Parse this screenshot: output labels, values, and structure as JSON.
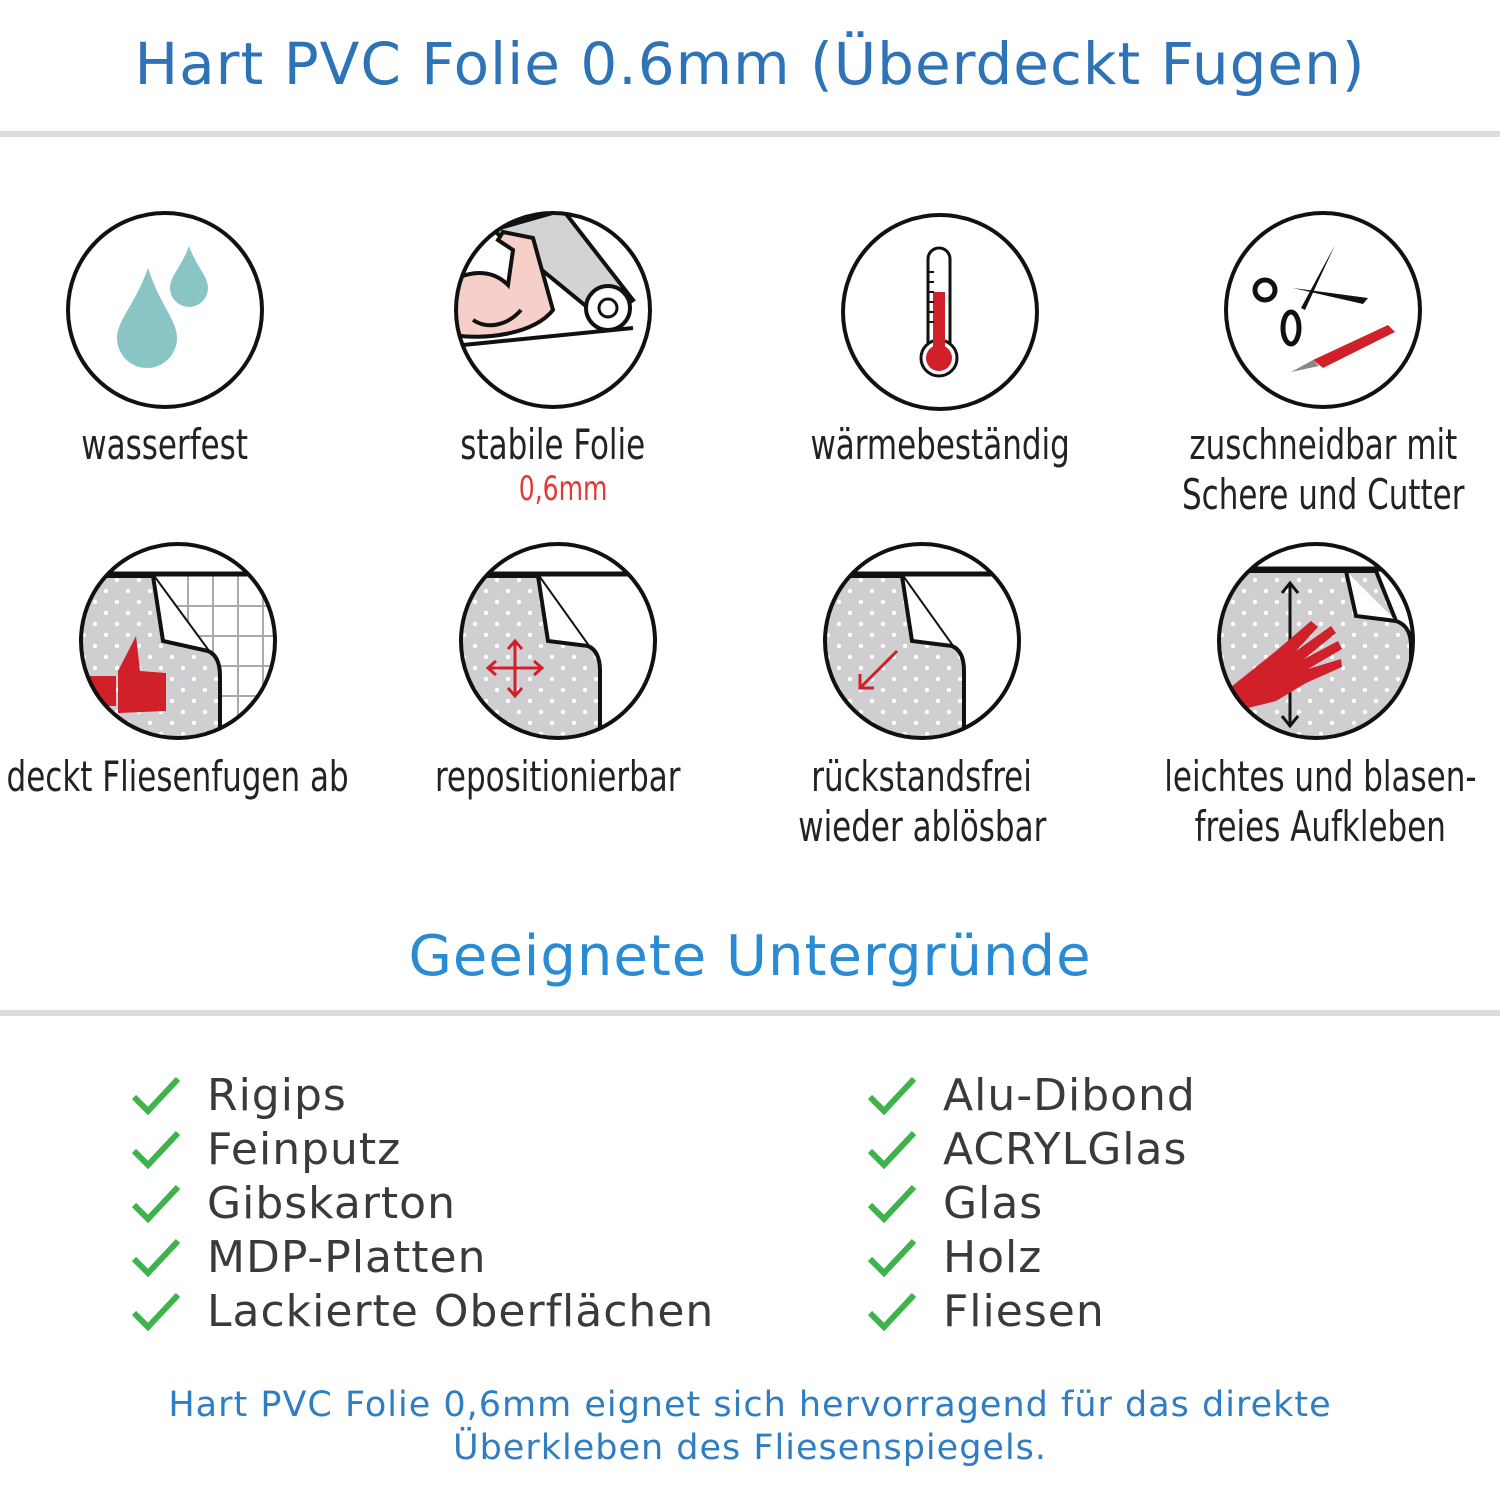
{
  "header": {
    "title": "Hart PVC Folie 0.6mm (Überdeckt Fugen)"
  },
  "features": [
    {
      "icon": "water-drops-icon",
      "lines": [
        "wasserfest"
      ]
    },
    {
      "icon": "strong-arm-foil-roll-icon",
      "lines": [
        "stabile Folie"
      ],
      "note": "0,6mm"
    },
    {
      "icon": "thermometer-icon",
      "lines": [
        "wärmebeständig"
      ]
    },
    {
      "icon": "scissors-cutter-icon",
      "lines": [
        "zuschneidbar mit",
        "Schere und Cutter"
      ]
    },
    {
      "icon": "thumbs-up-tiles-icon",
      "lines": [
        "deckt Fliesenfugen ab"
      ]
    },
    {
      "icon": "move-arrows-icon",
      "lines": [
        "repositionierbar"
      ]
    },
    {
      "icon": "peel-arrow-icon",
      "lines": [
        "rückstandsfrei",
        "wieder ablösbar"
      ]
    },
    {
      "icon": "hand-smoothing-icon",
      "lines": [
        "leichtes und blasen-",
        "freies Aufkleben"
      ]
    }
  ],
  "surfaces": {
    "title": "Geeignete Untergründe",
    "left": [
      "Rigips",
      "Feinputz",
      "Gibskarton",
      "MDP-Platten",
      "Lackierte Oberflächen"
    ],
    "right": [
      "Alu-Dibond",
      "ACRYLGlas",
      "Glas",
      "Holz",
      "Fliesen"
    ]
  },
  "footer": {
    "lines": [
      "Hart PVC Folie 0,6mm eignet sich hervorragend für das direkte",
      "Überkleben des Fliesenspiegels."
    ]
  },
  "colors": {
    "title": "#2e72b8",
    "subtitle": "#2a8bd5",
    "check": "#3cb44b",
    "accent_red": "#d0202a",
    "drop": "#8ac5c5"
  }
}
